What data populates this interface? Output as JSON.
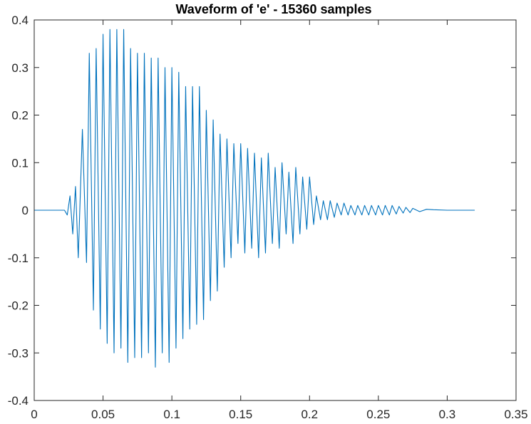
{
  "chart_data": {
    "type": "line",
    "title": "Waveform of 'e' - 15360 samples",
    "xlabel": "",
    "ylabel": "",
    "xlim": [
      0,
      0.35
    ],
    "ylim": [
      -0.4,
      0.4
    ],
    "x_ticks": [
      0,
      0.05,
      0.1,
      0.15,
      0.2,
      0.25,
      0.3,
      0.35
    ],
    "x_tick_labels": [
      "0",
      "0.05",
      "0.1",
      "0.15",
      "0.2",
      "0.25",
      "0.3",
      "0.35"
    ],
    "y_ticks": [
      -0.4,
      -0.3,
      -0.2,
      -0.1,
      0,
      0.1,
      0.2,
      0.3,
      0.4
    ],
    "y_tick_labels": [
      "-0.4",
      "-0.3",
      "-0.2",
      "-0.1",
      "0",
      "0.1",
      "0.2",
      "0.3",
      "0.4"
    ],
    "grid": false,
    "legend": "none",
    "line_color": "#0072BD",
    "series": [
      {
        "x": [
          0,
          0.022,
          0.024,
          0.026,
          0.028,
          0.03,
          0.032,
          0.035,
          0.038,
          0.04,
          0.043,
          0.045,
          0.048,
          0.05,
          0.053,
          0.055,
          0.058,
          0.06,
          0.063,
          0.065,
          0.068,
          0.07,
          0.073,
          0.075,
          0.078,
          0.08,
          0.083,
          0.085,
          0.088,
          0.09,
          0.093,
          0.095,
          0.098,
          0.1,
          0.103,
          0.105,
          0.108,
          0.11,
          0.113,
          0.115,
          0.118,
          0.12,
          0.123,
          0.125,
          0.128,
          0.13,
          0.133,
          0.135,
          0.138,
          0.14,
          0.143,
          0.145,
          0.148,
          0.15,
          0.153,
          0.155,
          0.158,
          0.16,
          0.163,
          0.165,
          0.168,
          0.17,
          0.173,
          0.175,
          0.178,
          0.18,
          0.183,
          0.185,
          0.188,
          0.19,
          0.193,
          0.195,
          0.198,
          0.2,
          0.203,
          0.205,
          0.208,
          0.21,
          0.213,
          0.215,
          0.218,
          0.22,
          0.223,
          0.225,
          0.228,
          0.23,
          0.233,
          0.235,
          0.238,
          0.24,
          0.243,
          0.245,
          0.248,
          0.25,
          0.253,
          0.255,
          0.258,
          0.26,
          0.263,
          0.265,
          0.268,
          0.27,
          0.273,
          0.275,
          0.28,
          0.285,
          0.29,
          0.3,
          0.32
        ],
        "y": [
          0,
          0,
          -0.01,
          0.03,
          -0.05,
          0.05,
          -0.1,
          0.17,
          -0.11,
          0.33,
          -0.21,
          0.34,
          -0.25,
          0.37,
          -0.28,
          0.38,
          -0.3,
          0.38,
          -0.29,
          0.38,
          -0.32,
          0.34,
          -0.31,
          0.33,
          -0.31,
          0.33,
          -0.3,
          0.32,
          -0.33,
          0.32,
          -0.3,
          0.3,
          -0.32,
          0.3,
          -0.29,
          0.29,
          -0.27,
          0.26,
          -0.25,
          0.26,
          -0.24,
          0.26,
          -0.23,
          0.21,
          -0.19,
          0.19,
          -0.17,
          0.16,
          -0.12,
          0.15,
          -0.1,
          0.14,
          -0.07,
          0.14,
          -0.09,
          0.13,
          -0.08,
          0.12,
          -0.1,
          0.11,
          -0.09,
          0.12,
          -0.07,
          0.09,
          -0.08,
          0.1,
          -0.05,
          0.08,
          -0.07,
          0.09,
          -0.05,
          0.07,
          -0.04,
          0.07,
          -0.03,
          0.03,
          -0.02,
          0.02,
          -0.02,
          0.02,
          -0.015,
          0.015,
          -0.01,
          0.015,
          -0.01,
          0.01,
          -0.01,
          0.01,
          -0.01,
          0.01,
          -0.01,
          0.01,
          -0.01,
          0.01,
          -0.01,
          0.01,
          -0.01,
          0.01,
          -0.008,
          0.008,
          -0.006,
          0.006,
          -0.005,
          0.004,
          -0.003,
          0.002,
          0.001,
          0,
          0
        ]
      }
    ]
  }
}
